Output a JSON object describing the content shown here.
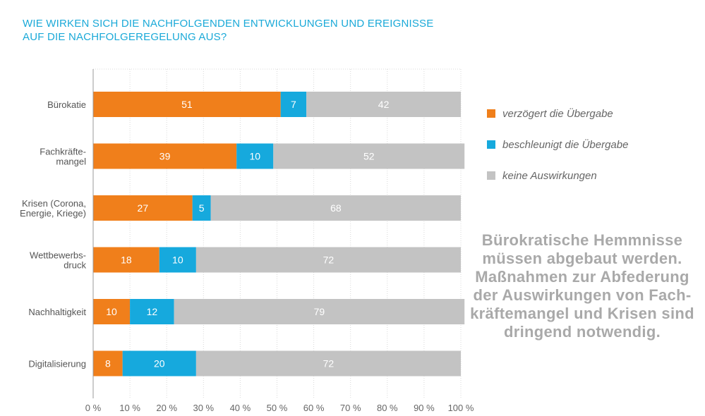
{
  "title": {
    "line1": "WIE WIRKEN SICH DIE NACHFOLGENDEN ENTWICKLUNGEN UND EREIGNISSE",
    "line2": "AUF DIE NACHFOLGEREGELUNG AUS?"
  },
  "colors": {
    "accent": "#1aa9d8",
    "delayed": "#f07f1b",
    "accelerated": "#16a9dd",
    "none": "#c3c3c3",
    "callout": "#a9a9a9"
  },
  "chart_data": {
    "type": "bar",
    "orientation": "horizontal",
    "stacked": true,
    "categories": [
      [
        "Bürokatie"
      ],
      [
        "Fachkräfte-",
        "mangel"
      ],
      [
        "Krisen (Corona,",
        "Energie, Kriege)"
      ],
      [
        "Wettbewerbs-",
        "druck"
      ],
      [
        "Nachhaltigkeit"
      ],
      [
        "Digitalisierung"
      ]
    ],
    "series": [
      {
        "name": "verzögert die Übergabe",
        "color": "#f07f1b",
        "values": [
          51,
          39,
          27,
          18,
          10,
          8
        ]
      },
      {
        "name": "beschleunigt die Übergabe",
        "color": "#16a9dd",
        "values": [
          7,
          10,
          5,
          10,
          12,
          20
        ]
      },
      {
        "name": "keine Auswirkungen",
        "color": "#c3c3c3",
        "values": [
          42,
          52,
          68,
          72,
          79,
          72
        ]
      }
    ],
    "xlim": [
      0,
      100
    ],
    "xticks": [
      "0 %",
      "10 %",
      "20 %",
      "30 %",
      "40 %",
      "50 %",
      "60 %",
      "70 %",
      "80 %",
      "90 %",
      "100 %"
    ],
    "grid": true,
    "legend_position": "right"
  },
  "callout": {
    "lines": [
      "Bürokratische Hemmnisse",
      "müssen abgebaut werden.",
      "Maßnahmen zur Abfederung",
      "der Auswirkungen von Fach-",
      "kräftemangel und Krisen sind",
      "dringend notwendig."
    ]
  }
}
